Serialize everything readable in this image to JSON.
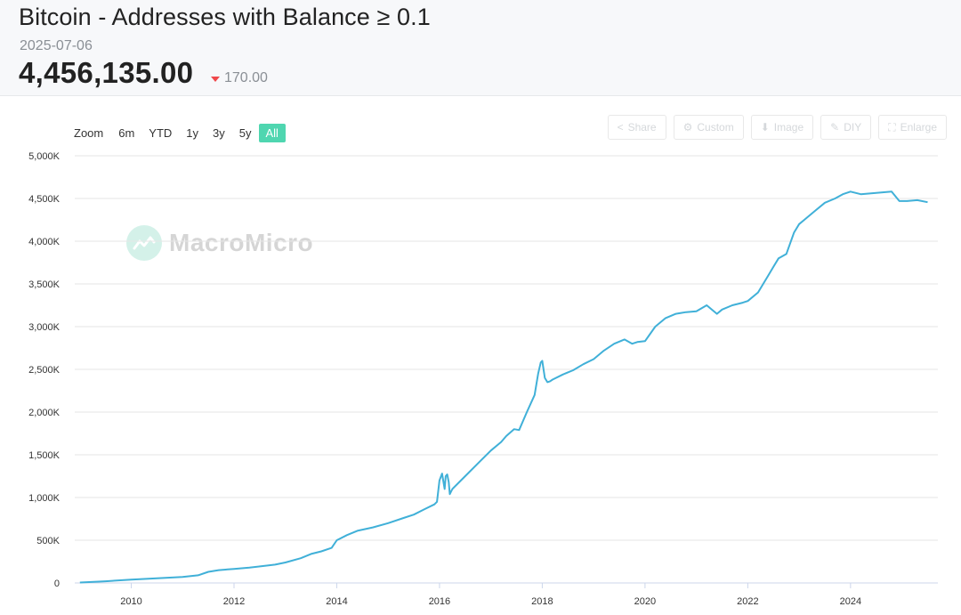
{
  "header": {
    "title": "Bitcoin - Addresses with Balance ≥ 0.1",
    "date": "2025-07-06",
    "value": "4,456,135.00",
    "change": "170.00",
    "change_direction": "down",
    "change_color": "#f0484b"
  },
  "zoom": {
    "label": "Zoom",
    "options": [
      "6m",
      "YTD",
      "1y",
      "3y",
      "5y",
      "All"
    ],
    "active": "All"
  },
  "toolbar": [
    {
      "label": "Share",
      "icon": "share-icon"
    },
    {
      "label": "Custom",
      "icon": "gear-icon"
    },
    {
      "label": "Image",
      "icon": "download-icon"
    },
    {
      "label": "DIY",
      "icon": "pencil-icon"
    },
    {
      "label": "Enlarge",
      "icon": "expand-icon"
    }
  ],
  "watermark": {
    "text": "MacroMicro",
    "icon": "macromicro-logo-icon"
  },
  "chart_data": {
    "type": "line",
    "title": "",
    "xlabel": "",
    "ylabel": "",
    "x_range": [
      2008.9,
      2025.7
    ],
    "ylim": [
      0,
      5000
    ],
    "y_unit": "K",
    "grid": true,
    "line_color": "#40b0d8",
    "x_ticks": [
      "2010",
      "2012",
      "2014",
      "2016",
      "2018",
      "2020",
      "2022",
      "2024"
    ],
    "y_ticks": [
      "0",
      "500K",
      "1,000K",
      "1,500K",
      "2,000K",
      "2,500K",
      "3,000K",
      "3,500K",
      "4,000K",
      "4,500K",
      "5,000K"
    ],
    "series": [
      {
        "x": [
          2009.0,
          2009.5,
          2010.0,
          2010.5,
          2011.0,
          2011.3,
          2011.5,
          2011.7,
          2012.0,
          2012.3,
          2012.6,
          2012.8,
          2013.0,
          2013.3,
          2013.5,
          2013.7,
          2013.9,
          2014.0,
          2014.2,
          2014.4,
          2014.7,
          2015.0,
          2015.3,
          2015.5,
          2015.7,
          2015.9,
          2015.95,
          2016.0,
          2016.05,
          2016.1,
          2016.12,
          2016.15,
          2016.18,
          2016.2,
          2016.25,
          2016.5,
          2016.8,
          2017.0,
          2017.2,
          2017.3,
          2017.45,
          2017.55,
          2017.7,
          2017.85,
          2017.92,
          2017.97,
          2018.0,
          2018.05,
          2018.1,
          2018.15,
          2018.2,
          2018.4,
          2018.6,
          2018.8,
          2019.0,
          2019.2,
          2019.4,
          2019.6,
          2019.75,
          2019.85,
          2020.0,
          2020.2,
          2020.4,
          2020.6,
          2020.8,
          2021.0,
          2021.2,
          2021.4,
          2021.5,
          2021.7,
          2021.9,
          2022.0,
          2022.2,
          2022.4,
          2022.5,
          2022.6,
          2022.75,
          2022.9,
          2023.0,
          2023.1,
          2023.3,
          2023.5,
          2023.7,
          2023.85,
          2024.0,
          2024.2,
          2024.4,
          2024.6,
          2024.8,
          2024.95,
          2025.1,
          2025.3,
          2025.5
        ],
        "values": [
          5,
          20,
          40,
          55,
          70,
          90,
          130,
          150,
          165,
          180,
          200,
          215,
          240,
          290,
          340,
          370,
          410,
          500,
          560,
          610,
          650,
          700,
          760,
          800,
          860,
          920,
          950,
          1200,
          1280,
          1100,
          1250,
          1270,
          1180,
          1040,
          1100,
          1250,
          1430,
          1550,
          1650,
          1720,
          1800,
          1790,
          2000,
          2200,
          2450,
          2580,
          2600,
          2400,
          2350,
          2360,
          2380,
          2440,
          2490,
          2560,
          2620,
          2720,
          2800,
          2850,
          2800,
          2820,
          2830,
          3000,
          3100,
          3150,
          3170,
          3180,
          3250,
          3150,
          3200,
          3250,
          3280,
          3300,
          3400,
          3600,
          3700,
          3800,
          3850,
          4100,
          4200,
          4250,
          4350,
          4450,
          4500,
          4550,
          4580,
          4550,
          4560,
          4570,
          4580,
          4470,
          4470,
          4480,
          4456
        ]
      }
    ]
  }
}
